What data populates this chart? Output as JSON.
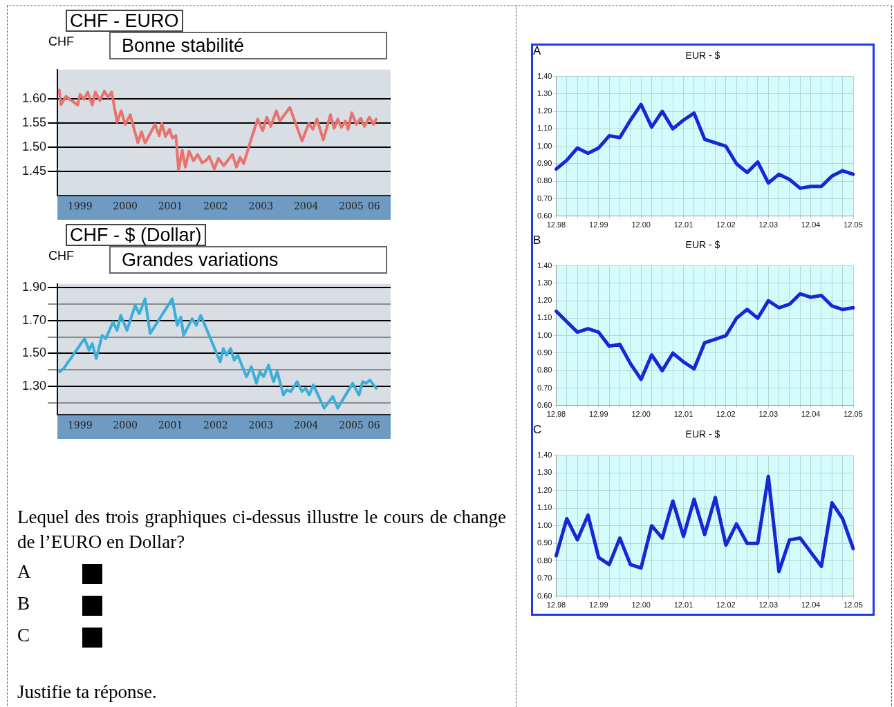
{
  "chart_data": [
    {
      "type": "line",
      "title": "CHF - EURO",
      "subtitle": "Bonne stabilité",
      "ylabel": "CHF",
      "color": "#e8736e",
      "marker": "none",
      "grid": "y",
      "x": [
        1999.04,
        1999.08,
        1999.19,
        1999.3,
        1999.45,
        1999.5,
        1999.59,
        1999.67,
        1999.77,
        1999.84,
        1999.94,
        2000.04,
        2000.12,
        2000.2,
        2000.32,
        2000.41,
        2000.5,
        2000.61,
        2000.78,
        2000.86,
        2000.94,
        2001.16,
        2001.25,
        2001.31,
        2001.39,
        2001.48,
        2001.54,
        2001.62,
        2001.68,
        2001.76,
        2001.83,
        2001.91,
        2002.01,
        2002.1,
        2002.2,
        2002.28,
        2002.36,
        2002.47,
        2002.56,
        2002.68,
        2002.8,
        2002.87,
        2002.96,
        2003.04,
        2003.12,
        2003.28,
        2003.43,
        2003.54,
        2003.63,
        2003.72,
        2003.84,
        2003.92,
        2004.14,
        2004.41,
        2004.56,
        2004.65,
        2004.74,
        2004.88,
        2005.04,
        2005.12,
        2005.2,
        2005.28,
        2005.37,
        2005.43,
        2005.51,
        2005.61,
        2005.71,
        2005.79,
        2005.9,
        2005.99,
        2006.05
      ],
      "values": [
        1.618,
        1.588,
        1.605,
        1.597,
        1.587,
        1.609,
        1.599,
        1.614,
        1.587,
        1.614,
        1.596,
        1.616,
        1.603,
        1.614,
        1.552,
        1.575,
        1.547,
        1.567,
        1.509,
        1.532,
        1.509,
        1.547,
        1.524,
        1.549,
        1.522,
        1.537,
        1.519,
        1.524,
        1.453,
        1.494,
        1.459,
        1.492,
        1.472,
        1.485,
        1.468,
        1.472,
        1.481,
        1.455,
        1.477,
        1.462,
        1.477,
        1.485,
        1.459,
        1.479,
        1.466,
        1.515,
        1.558,
        1.534,
        1.562,
        1.543,
        1.575,
        1.554,
        1.582,
        1.513,
        1.549,
        1.537,
        1.558,
        1.515,
        1.567,
        1.539,
        1.558,
        1.541,
        1.554,
        1.537,
        1.571,
        1.547,
        1.56,
        1.543,
        1.562,
        1.547,
        1.558
      ],
      "xlim": [
        1999,
        2006.37
      ],
      "xticks": [
        {
          "value": 1999.5,
          "label": "1999"
        },
        {
          "value": 2000.5,
          "label": "2000"
        },
        {
          "value": 2001.5,
          "label": "2001"
        },
        {
          "value": 2002.5,
          "label": "2002"
        },
        {
          "value": 2003.5,
          "label": "2003"
        },
        {
          "value": 2004.5,
          "label": "2004"
        },
        {
          "value": 2005.5,
          "label": "2005"
        },
        {
          "value": 2006,
          "label": "06"
        }
      ],
      "ylim": [
        1.4,
        1.66
      ],
      "yticks": [
        {
          "value": 1.45,
          "label": "1.45"
        },
        {
          "value": 1.5,
          "label": "1.50"
        },
        {
          "value": 1.55,
          "label": "1.55"
        },
        {
          "value": 1.6,
          "label": "1.60"
        }
      ]
    },
    {
      "type": "line",
      "title": "CHF - $ (Dollar)",
      "subtitle": "Grandes variations",
      "ylabel": "CHF",
      "color": "#3aaed8",
      "marker": "none",
      "grid": "y",
      "x": [
        1999.05,
        1999.14,
        1999.6,
        1999.7,
        1999.77,
        1999.86,
        1999.99,
        2000.07,
        2000.23,
        2000.32,
        2000.4,
        2000.54,
        2000.72,
        2000.81,
        2000.94,
        2001.05,
        2001.54,
        2001.65,
        2001.73,
        2001.79,
        2001.98,
        2002.07,
        2002.17,
        2002.6,
        2002.67,
        2002.74,
        2002.83,
        2002.91,
        2002.99,
        2003.18,
        2003.29,
        2003.4,
        2003.48,
        2003.56,
        2003.67,
        2003.78,
        2003.86,
        2004,
        2004.07,
        2004.16,
        2004.3,
        2004.41,
        2004.49,
        2004.57,
        2004.66,
        2004.9,
        2005.09,
        2005.2,
        2005.53,
        2005.67,
        2005.75,
        2005.83,
        2005.91,
        2006.05
      ],
      "values": [
        1.39,
        1.41,
        1.59,
        1.52,
        1.56,
        1.47,
        1.61,
        1.59,
        1.69,
        1.64,
        1.73,
        1.64,
        1.79,
        1.74,
        1.83,
        1.62,
        1.83,
        1.67,
        1.72,
        1.61,
        1.71,
        1.67,
        1.73,
        1.45,
        1.53,
        1.49,
        1.53,
        1.46,
        1.49,
        1.36,
        1.42,
        1.32,
        1.39,
        1.36,
        1.43,
        1.33,
        1.39,
        1.25,
        1.28,
        1.27,
        1.33,
        1.27,
        1.29,
        1.25,
        1.31,
        1.17,
        1.24,
        1.17,
        1.32,
        1.25,
        1.33,
        1.32,
        1.34,
        1.29
      ],
      "xlim": [
        1999,
        2006.37
      ],
      "xticks": [
        {
          "value": 1999.5,
          "label": "1999"
        },
        {
          "value": 2000.5,
          "label": "2000"
        },
        {
          "value": 2001.5,
          "label": "2001"
        },
        {
          "value": 2002.5,
          "label": "2002"
        },
        {
          "value": 2003.5,
          "label": "2003"
        },
        {
          "value": 2004.5,
          "label": "2004"
        },
        {
          "value": 2005.5,
          "label": "2005"
        },
        {
          "value": 2006,
          "label": "06"
        }
      ],
      "ylim": [
        1.13,
        1.92
      ],
      "yticks": [
        {
          "value": 1.2,
          "label": null
        },
        {
          "value": 1.3,
          "label": "1.30"
        },
        {
          "value": 1.4,
          "label": null
        },
        {
          "value": 1.5,
          "label": "1.50"
        },
        {
          "value": 1.6,
          "label": null
        },
        {
          "value": 1.7,
          "label": "1.70"
        },
        {
          "value": 1.8,
          "label": null
        },
        {
          "value": 1.9,
          "label": "1.90"
        }
      ],
      "annotations": [
        "Lequel des trois graphiques ci-dessus illustre le cours de change de l’EURO en Dollar?",
        "A",
        "B",
        "C",
        "Justifie ta réponse."
      ]
    },
    {
      "type": "line",
      "title": "EUR - $",
      "color": "#1428d8",
      "marker": "none",
      "grid": true,
      "annotations": [
        "A"
      ],
      "categories": [
        "12.98",
        null,
        null,
        null,
        "12.99",
        null,
        null,
        null,
        "12.00",
        null,
        null,
        null,
        "12.01",
        null,
        null,
        null,
        "12.02",
        null,
        null,
        null,
        "12.03",
        null,
        null,
        null,
        "12.04",
        null,
        null,
        null,
        "12.05"
      ],
      "values": [
        0.87,
        0.92,
        0.99,
        0.96,
        0.99,
        1.06,
        1.05,
        1.15,
        1.24,
        1.11,
        1.2,
        1.1,
        1.15,
        1.19,
        1.04,
        1.02,
        1.0,
        0.9,
        0.85,
        0.91,
        0.79,
        0.84,
        0.81,
        0.76,
        0.77,
        0.77,
        0.83,
        0.86,
        0.84
      ],
      "ylim": [
        0.6,
        1.4
      ],
      "yticks": [
        {
          "value": 0.6,
          "label": "0.60"
        },
        {
          "value": 0.7,
          "label": "0.70"
        },
        {
          "value": 0.8,
          "label": "0.80"
        },
        {
          "value": 0.9,
          "label": "0.90"
        },
        {
          "value": 1.0,
          "label": "1.00"
        },
        {
          "value": 1.1,
          "label": "1.10"
        },
        {
          "value": 1.2,
          "label": "1.20"
        },
        {
          "value": 1.3,
          "label": "1.30"
        },
        {
          "value": 1.4,
          "label": "1.40"
        }
      ]
    },
    {
      "type": "line",
      "title": "EUR - $",
      "color": "#1428d8",
      "marker": "none",
      "grid": true,
      "annotations": [
        "B"
      ],
      "categories": [
        "12.98",
        null,
        null,
        null,
        "12.99",
        null,
        null,
        null,
        "12.00",
        null,
        null,
        null,
        "12.01",
        null,
        null,
        null,
        "12.02",
        null,
        null,
        null,
        "12.03",
        null,
        null,
        null,
        "12.04",
        null,
        null,
        null,
        "12.05"
      ],
      "values": [
        1.14,
        1.08,
        1.02,
        1.04,
        1.02,
        0.94,
        0.95,
        0.84,
        0.75,
        0.89,
        0.8,
        0.9,
        0.85,
        0.81,
        0.96,
        0.98,
        1.0,
        1.1,
        1.15,
        1.1,
        1.2,
        1.16,
        1.18,
        1.24,
        1.22,
        1.23,
        1.17,
        1.15,
        1.16
      ],
      "ylim": [
        0.6,
        1.4
      ],
      "yticks": [
        {
          "value": 0.6,
          "label": "0.60"
        },
        {
          "value": 0.7,
          "label": "0.70"
        },
        {
          "value": 0.8,
          "label": "0.80"
        },
        {
          "value": 0.9,
          "label": "0.90"
        },
        {
          "value": 1.0,
          "label": "1.00"
        },
        {
          "value": 1.1,
          "label": "1.10"
        },
        {
          "value": 1.2,
          "label": "1.20"
        },
        {
          "value": 1.3,
          "label": "1.30"
        },
        {
          "value": 1.4,
          "label": "1.40"
        }
      ]
    },
    {
      "type": "line",
      "title": "EUR - $",
      "color": "#1428d8",
      "marker": "none",
      "grid": true,
      "annotations": [
        "C"
      ],
      "categories": [
        "12.98",
        null,
        null,
        null,
        "12.99",
        null,
        null,
        null,
        "12.00",
        null,
        null,
        null,
        "12.01",
        null,
        null,
        null,
        "12.02",
        null,
        null,
        null,
        "12.03",
        null,
        null,
        null,
        "12.04",
        null,
        null,
        null,
        "12.05"
      ],
      "values": [
        0.83,
        1.04,
        0.92,
        1.06,
        0.82,
        0.78,
        0.93,
        0.78,
        0.76,
        1.0,
        0.93,
        1.14,
        0.94,
        1.15,
        0.95,
        1.16,
        0.89,
        1.01,
        0.9,
        0.9,
        1.28,
        0.74,
        0.92,
        0.93,
        0.85,
        0.77,
        1.13,
        1.04,
        0.87
      ],
      "ylim": [
        0.6,
        1.4
      ],
      "yticks": [
        {
          "value": 0.6,
          "label": "0.60"
        },
        {
          "value": 0.7,
          "label": "0.70"
        },
        {
          "value": 0.8,
          "label": "0.80"
        },
        {
          "value": 0.9,
          "label": "0.90"
        },
        {
          "value": 1.0,
          "label": "1.00"
        },
        {
          "value": 1.1,
          "label": "1.10"
        },
        {
          "value": 1.2,
          "label": "1.20"
        },
        {
          "value": 1.3,
          "label": "1.30"
        },
        {
          "value": 1.4,
          "label": "1.40"
        }
      ]
    }
  ]
}
